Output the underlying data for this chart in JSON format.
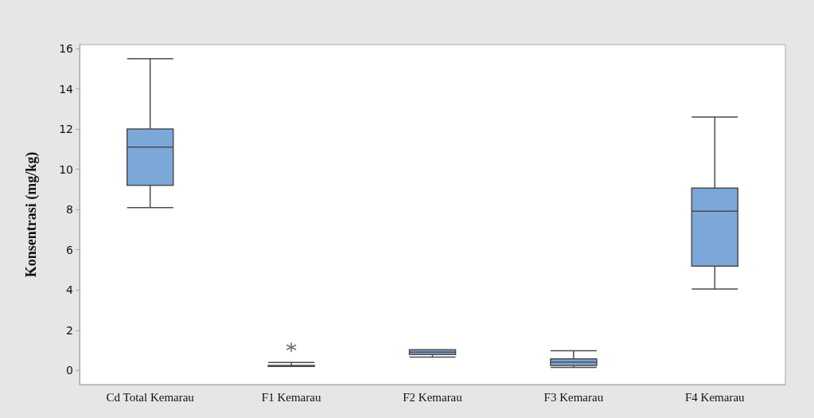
{
  "chart_data": {
    "type": "box",
    "ylabel": "Konsentrasi (mg/kg)",
    "categories": [
      "Cd Total Kemarau",
      "F1 Kemarau",
      "F2 Kemarau",
      "F3 Kemarau",
      "F4 Kemarau"
    ],
    "color": "#7ba7d9",
    "boxes": [
      {
        "low": 8.1,
        "q1": 9.2,
        "median": 11.1,
        "q3": 12.0,
        "high": 15.5
      },
      {
        "low": 0.2,
        "q1": 0.2,
        "median": 0.22,
        "q3": 0.25,
        "high": 0.4,
        "outliers": [
          1.15
        ]
      },
      {
        "low": 0.67,
        "q1": 0.79,
        "median": 0.91,
        "q3": 1.03,
        "high": 1.03
      },
      {
        "low": 0.15,
        "q1": 0.25,
        "median": 0.42,
        "q3": 0.58,
        "high": 0.98
      },
      {
        "low": 4.05,
        "q1": 5.19,
        "median": 7.92,
        "q3": 9.07,
        "high": 12.6
      }
    ],
    "ylim": [
      -0.7,
      16.2
    ],
    "yticks": [
      0,
      2,
      4,
      6,
      8,
      10,
      12,
      14,
      16
    ],
    "grid": false
  }
}
